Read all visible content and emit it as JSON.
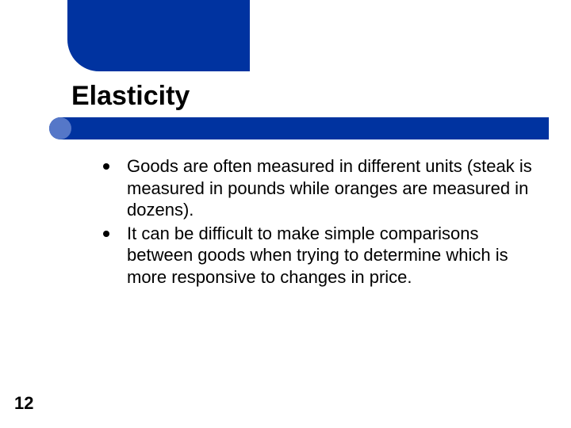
{
  "slide": {
    "title": "Elasticity",
    "page_number": "12",
    "accent_color": "#0033a0",
    "accent_highlight": "#5577c8",
    "background_color": "#ffffff",
    "title_fontsize": 34,
    "body_fontsize": 22,
    "bullets": [
      {
        "text": "Goods are often measured in different units (steak is measured in pounds while oranges are measured in dozens)."
      },
      {
        "text": "It can be difficult to make simple comparisons between goods when trying to determine which is more responsive to changes in price."
      }
    ]
  }
}
